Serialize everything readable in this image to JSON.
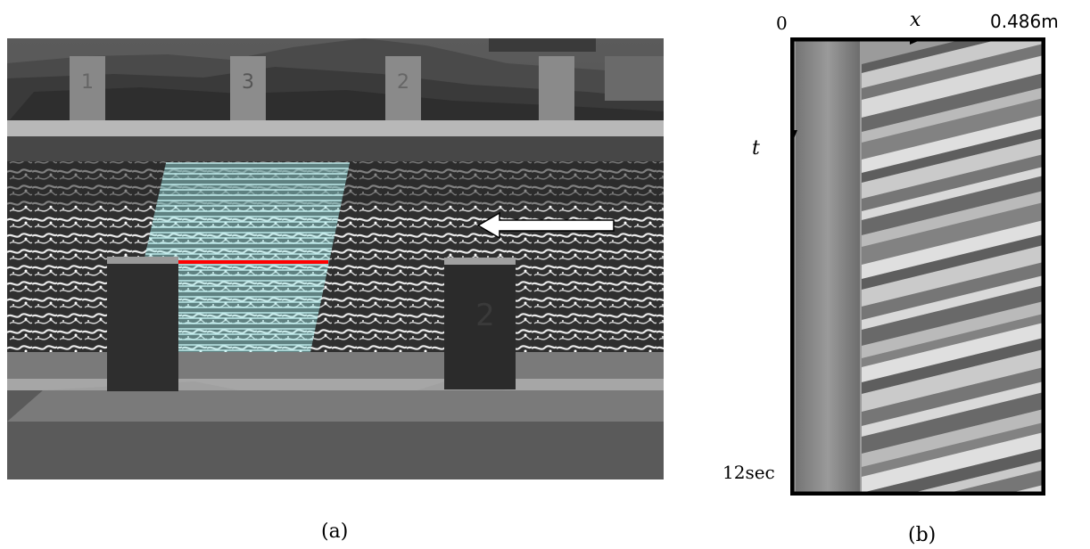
{
  "panel_a": {
    "caption": "(a)",
    "markers": [
      "1",
      "3",
      "2",
      "2"
    ],
    "arrow_color": "#ffffff",
    "overlay_color": "#9be6e6",
    "measurement_line_color": "#ff0000"
  },
  "panel_b": {
    "caption": "(b)",
    "x_origin_label": "0",
    "x_axis_label": "x",
    "x_end_label": "0.486m",
    "t_axis_label": "t",
    "t_end_label": "12sec"
  }
}
